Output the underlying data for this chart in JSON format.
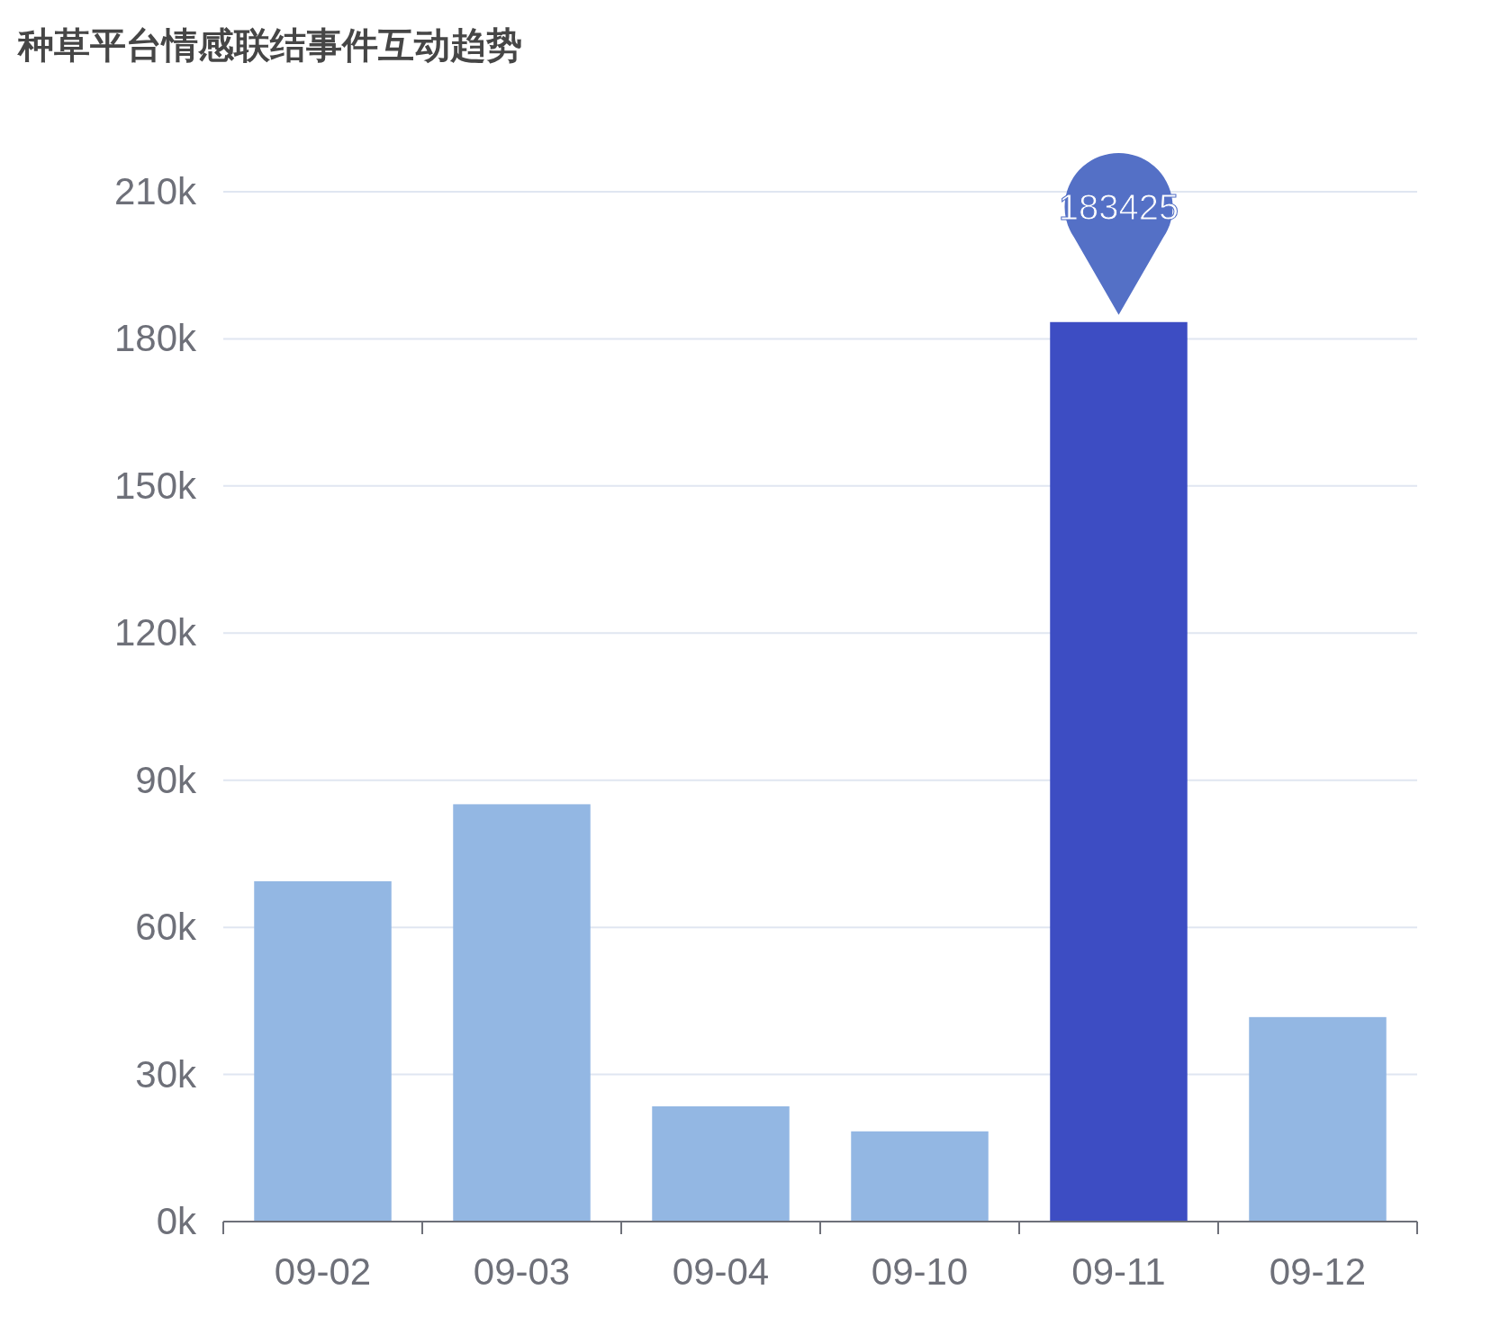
{
  "chart_data": {
    "type": "bar",
    "title": "种草平台情感联结事件互动趋势",
    "categories": [
      "09-02",
      "09-03",
      "09-04",
      "09-10",
      "09-11",
      "09-12"
    ],
    "values": [
      69400,
      85100,
      23500,
      18400,
      183425,
      41700
    ],
    "colors": [
      "#93b7e3",
      "#93b7e3",
      "#93b7e3",
      "#93b7e3",
      "#3d4dc3",
      "#93b7e3"
    ],
    "value_labels": [
      null,
      null,
      null,
      null,
      "183425",
      null
    ],
    "ylim": [
      0,
      210000
    ],
    "yticks": [
      {
        "value": 0,
        "label": "0k"
      },
      {
        "value": 30000,
        "label": "30k"
      },
      {
        "value": 60000,
        "label": "60k"
      },
      {
        "value": 90000,
        "label": "90k"
      },
      {
        "value": 120000,
        "label": "120k"
      },
      {
        "value": 150000,
        "label": "150k"
      },
      {
        "value": 180000,
        "label": "180k"
      },
      {
        "value": 210000,
        "label": "210k"
      }
    ],
    "grid": "y"
  }
}
